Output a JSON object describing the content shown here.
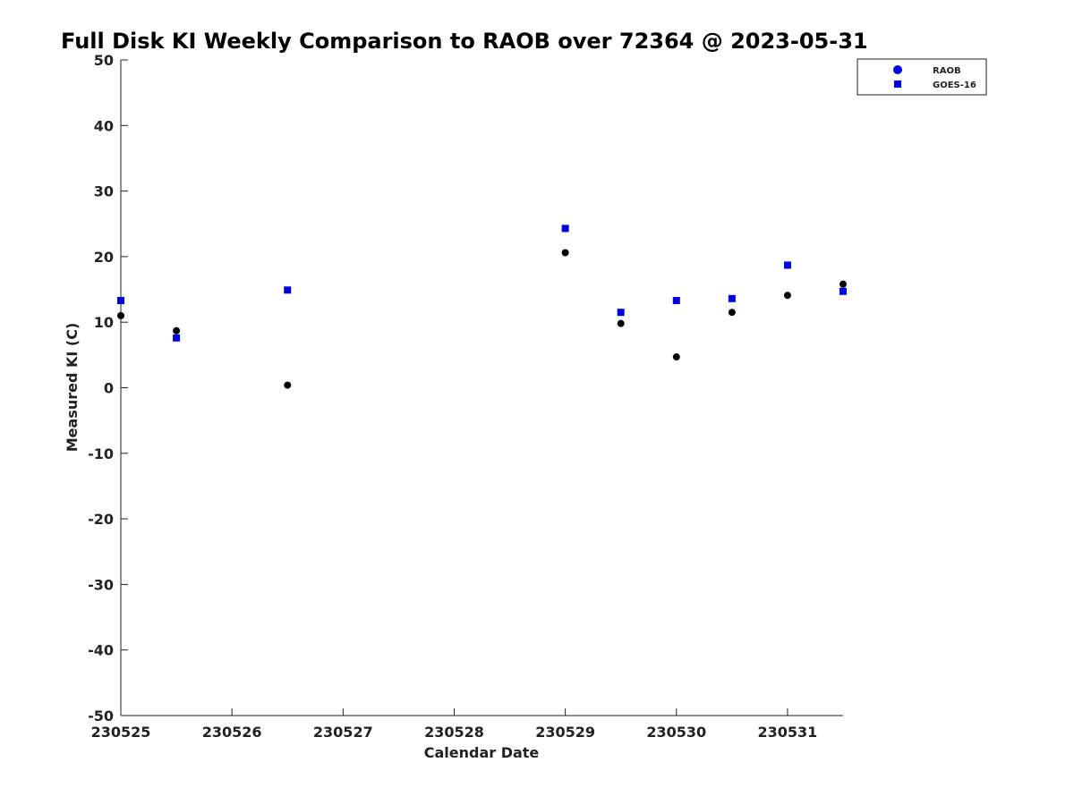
{
  "chart_data": {
    "type": "scatter",
    "title": "Full Disk KI Weekly Comparison to RAOB over 72364 @ 2023-05-31",
    "xlabel": "Calendar Date",
    "ylabel": "Measured KI (C)",
    "xlim": [
      0,
      6.5
    ],
    "ylim": [
      -50,
      50
    ],
    "x_ticks": [
      {
        "value": 0,
        "label": "230525"
      },
      {
        "value": 1,
        "label": "230526"
      },
      {
        "value": 2,
        "label": "230527"
      },
      {
        "value": 3,
        "label": "230528"
      },
      {
        "value": 4,
        "label": "230529"
      },
      {
        "value": 5,
        "label": "230530"
      },
      {
        "value": 6,
        "label": "230531"
      }
    ],
    "y_ticks": [
      50,
      40,
      30,
      20,
      10,
      0,
      -10,
      -20,
      -30,
      -40,
      -50
    ],
    "y_tick_labels": [
      "50",
      "40",
      "30",
      "20",
      "10",
      "0",
      "-10",
      "-20",
      "-30",
      "-40",
      "-50"
    ],
    "grid": false,
    "legend_position": "top-right",
    "series": [
      {
        "name": "RAOB",
        "marker": "circle",
        "color": "#000000",
        "legend_color": "#0000dd",
        "points": [
          {
            "x": 0.0,
            "y": 11.0
          },
          {
            "x": 0.5,
            "y": 8.7
          },
          {
            "x": 1.5,
            "y": 0.4
          },
          {
            "x": 4.0,
            "y": 20.6
          },
          {
            "x": 4.5,
            "y": 9.8
          },
          {
            "x": 5.0,
            "y": 4.7
          },
          {
            "x": 5.5,
            "y": 11.5
          },
          {
            "x": 6.0,
            "y": 14.1
          },
          {
            "x": 6.5,
            "y": 15.8
          }
        ]
      },
      {
        "name": "GOES-16",
        "marker": "square",
        "color": "#0000dd",
        "legend_color": "#0000dd",
        "points": [
          {
            "x": 0.0,
            "y": 13.3
          },
          {
            "x": 0.5,
            "y": 7.6
          },
          {
            "x": 1.5,
            "y": 14.9
          },
          {
            "x": 4.0,
            "y": 24.3
          },
          {
            "x": 4.5,
            "y": 11.5
          },
          {
            "x": 5.0,
            "y": 13.3
          },
          {
            "x": 5.5,
            "y": 13.6
          },
          {
            "x": 6.0,
            "y": 18.7
          },
          {
            "x": 6.5,
            "y": 14.7
          }
        ]
      }
    ]
  }
}
